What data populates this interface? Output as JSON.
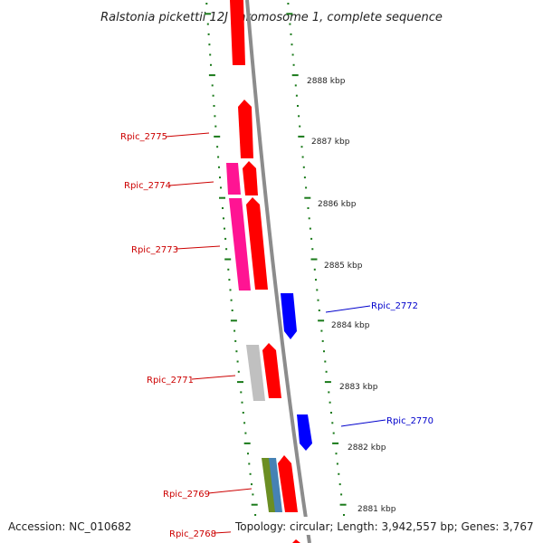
{
  "title": "Ralstonia pickettii 12J chromosome 1, complete sequence",
  "footer": {
    "accession": "Accession: NC_010682",
    "summary": "Topology: circular; Length: 3,942,557 bp; Genes: 3,767"
  },
  "colors": {
    "forward_gene": "#ff0000",
    "reverse_gene": "#0000ff",
    "pink_gene": "#ff1493",
    "grey_gene": "#c0c0c0",
    "olive_gene": "#6b8e23",
    "steelblue_gene": "#4682b4",
    "backbone": "#8c8c8c",
    "tick": "#1a7a1a"
  },
  "scale_labels": [
    "2888 kbp",
    "2887 kbp",
    "2886 kbp",
    "2885 kbp",
    "2884 kbp",
    "2883 kbp",
    "2882 kbp",
    "2881 kbp"
  ],
  "gene_labels": [
    {
      "text": "Rpic_2775",
      "strand": "forward"
    },
    {
      "text": "Rpic_2774",
      "strand": "forward"
    },
    {
      "text": "Rpic_2773",
      "strand": "forward"
    },
    {
      "text": "Rpic_2772",
      "strand": "reverse"
    },
    {
      "text": "Rpic_2771",
      "strand": "forward"
    },
    {
      "text": "Rpic_2770",
      "strand": "reverse"
    },
    {
      "text": "Rpic_2769",
      "strand": "forward"
    },
    {
      "text": "Rpic_2768",
      "strand": "forward"
    }
  ]
}
